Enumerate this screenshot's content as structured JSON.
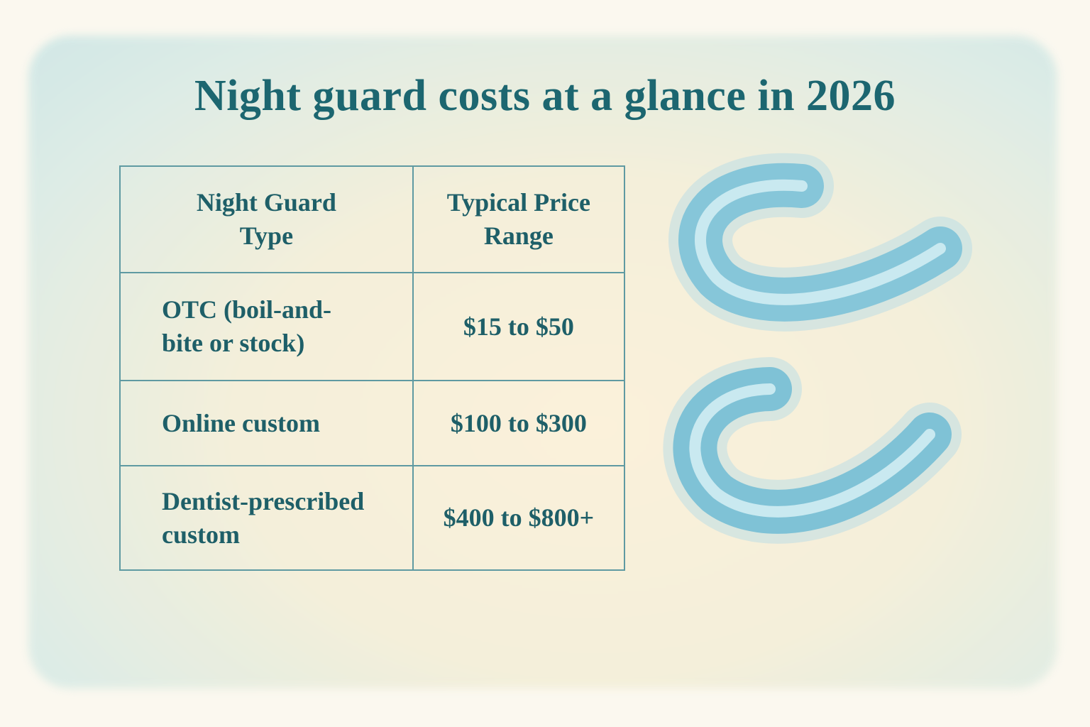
{
  "header": {
    "title": "Night guard costs at a glance in 2026"
  },
  "table": {
    "columns": [
      "Night Guard Type",
      "Typical Price Range"
    ],
    "rows": [
      [
        "OTC (boil-and-bite or stock)",
        "$15 to $50"
      ],
      [
        "Online custom",
        "$100 to $300"
      ],
      [
        "Dentist-prescribed custom",
        "$400 to $800+"
      ]
    ]
  }
}
